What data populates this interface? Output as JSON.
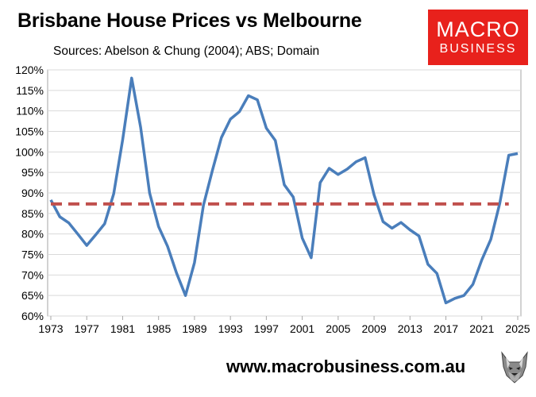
{
  "header": {
    "title": "Brisbane House Prices vs Melbourne",
    "subtitle": "Sources: Abelson & Chung (2004); ABS; Domain"
  },
  "logo": {
    "line1": "MACRO",
    "line2": "BUSINESS"
  },
  "footer": {
    "url": "www.macrobusiness.com.au"
  },
  "chart_data": {
    "type": "line",
    "ylim": [
      0.6,
      1.2
    ],
    "yticks": [
      "60%",
      "65%",
      "70%",
      "75%",
      "80%",
      "85%",
      "90%",
      "95%",
      "100%",
      "105%",
      "110%",
      "115%",
      "120%"
    ],
    "ytick_values": [
      0.6,
      0.65,
      0.7,
      0.75,
      0.8,
      0.85,
      0.9,
      0.95,
      1.0,
      1.05,
      1.1,
      1.15,
      1.2
    ],
    "xlim": [
      1973,
      2025
    ],
    "xticks": [
      "1973",
      "1977",
      "1981",
      "1985",
      "1989",
      "1993",
      "1997",
      "2001",
      "2005",
      "2009",
      "2013",
      "2017",
      "2021",
      "2025"
    ],
    "xtick_values": [
      1973,
      1977,
      1981,
      1985,
      1989,
      1993,
      1997,
      2001,
      2005,
      2009,
      2013,
      2017,
      2021,
      2025
    ],
    "grid": true,
    "series": [
      {
        "color": "#4a7ebb",
        "style": "solid",
        "x": [
          1973,
          1974,
          1975,
          1976,
          1977,
          1978,
          1979,
          1980,
          1981,
          1982,
          1983,
          1984,
          1985,
          1986,
          1987,
          1988,
          1989,
          1990,
          1991,
          1992,
          1993,
          1994,
          1995,
          1996,
          1997,
          1998,
          1999,
          2000,
          2001,
          2002,
          2003,
          2004,
          2005,
          2006,
          2007,
          2008,
          2009,
          2010,
          2011,
          2012,
          2013,
          2014,
          2015,
          2016,
          2017,
          2018,
          2019,
          2020,
          2021,
          2022,
          2023,
          2024,
          2025
        ],
        "values": [
          0.883,
          0.842,
          0.827,
          0.8,
          0.772,
          0.798,
          0.825,
          0.898,
          1.03,
          1.18,
          1.06,
          0.9,
          0.818,
          0.77,
          0.705,
          0.65,
          0.73,
          0.87,
          0.955,
          1.035,
          1.08,
          1.098,
          1.137,
          1.127,
          1.058,
          1.028,
          0.92,
          0.89,
          0.79,
          0.742,
          0.925,
          0.96,
          0.945,
          0.958,
          0.976,
          0.986,
          0.895,
          0.83,
          0.814,
          0.828,
          0.81,
          0.795,
          0.726,
          0.704,
          0.632,
          0.643,
          0.65,
          0.677,
          0.737,
          0.787,
          0.875,
          0.992,
          0.996
        ]
      },
      {
        "color": "#c0504d",
        "style": "dashed",
        "x": [
          1973,
          2024
        ],
        "values": [
          0.873,
          0.873
        ]
      }
    ]
  }
}
